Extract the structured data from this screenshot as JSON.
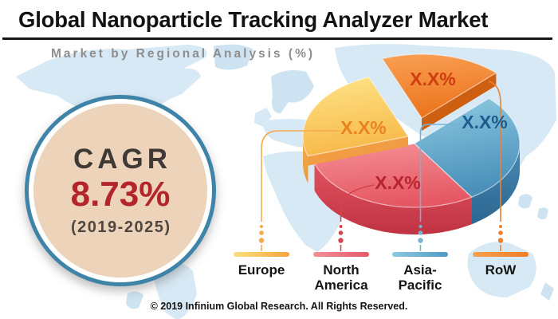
{
  "header": {
    "title": "Global Nanoparticle Tracking Analyzer Market",
    "subtitle": "Market by Regional Analysis (%)"
  },
  "cagr_badge": {
    "label": "CAGR",
    "value": "8.73%",
    "period": "(2019-2025)",
    "value_color": "#b3242b",
    "ring_color": "#3f84a8",
    "fill_color": "#ecd3b9"
  },
  "chart_data": {
    "type": "pie",
    "style": "3d-exploded",
    "title": "Market by Regional Analysis (%)",
    "unit": "%",
    "note": "slice values shown as X.X% placeholders in source image",
    "legend_position": "bottom",
    "slices": [
      {
        "region": "Europe",
        "value": "X.X%",
        "label_color": "#e8831d",
        "top_colors": [
          "#fee489",
          "#f8b94a"
        ],
        "side_colors": [
          "#f7b052",
          "#e89a36"
        ],
        "cut_color": "#f09d43",
        "leader_color": "#f4a94e",
        "legend_bar": [
          "#fbe07e",
          "#f6a43c"
        ]
      },
      {
        "region": "North America",
        "value": "X.X%",
        "label_color": "#b7242f",
        "top_colors": [
          "#f58f96",
          "#e55863"
        ],
        "side_colors": [
          "#e25260",
          "#bf3342"
        ],
        "cut_color": "#c73a47",
        "leader_color": "#d6454f",
        "legend_bar": [
          "#f29097",
          "#e55863"
        ]
      },
      {
        "region": "Asia-Pacific",
        "value": "X.X%",
        "label_color": "#1d5c8e",
        "top_colors": [
          "#8fcbe2",
          "#4a90ba"
        ],
        "side_colors": [
          "#4a8bb2",
          "#2b6690"
        ],
        "cut_color": "#33648c",
        "leader_color": "#76b2d4",
        "legend_bar": [
          "#8ccadf",
          "#4e9ac4"
        ]
      },
      {
        "region": "RoW",
        "value": "X.X%",
        "label_color": "#d13c10",
        "top_colors": [
          "#f8a055",
          "#ec751d"
        ],
        "side_colors": [
          "#e06a15",
          "#c25a0e"
        ],
        "cut_color": "#cf5f10",
        "leader_color": "#ef8030",
        "legend_bar": [
          "#f6a14e",
          "#ee7d28"
        ]
      }
    ]
  },
  "footer": {
    "copyright": "© 2019 Infinium Global Research. All Rights Reserved."
  }
}
